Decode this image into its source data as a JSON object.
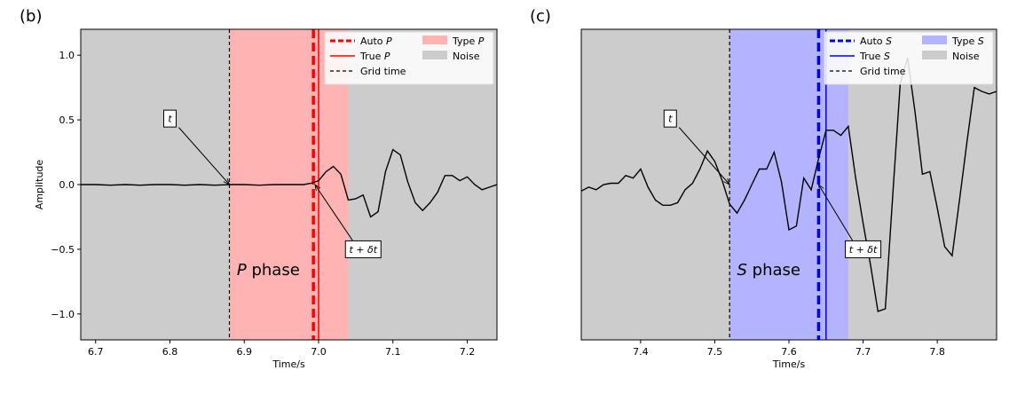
{
  "chart_data": [
    {
      "type": "line",
      "panel_label": "(b)",
      "xlabel": "Time/s",
      "ylabel": "Amplitude",
      "xlim": [
        6.68,
        7.24
      ],
      "ylim": [
        -1.2,
        1.2
      ],
      "x_ticks": [
        6.7,
        6.8,
        6.9,
        7.0,
        7.1,
        7.2
      ],
      "x_tick_labels": [
        "6.7",
        "6.8",
        "6.9",
        "7.0",
        "7.1",
        "7.2"
      ],
      "y_ticks": [
        1.0,
        0.5,
        0.0,
        -0.5,
        -1.0
      ],
      "y_tick_labels": [
        "1.0",
        "0.5",
        "0.0",
        "−0.5",
        "−1.0"
      ],
      "noise_color": "#cccccc",
      "phase_color": "#ffb3b3",
      "line_color": "#ff0000",
      "phase_span": [
        6.88,
        7.04
      ],
      "grid_time": 6.88,
      "auto_pick": 6.993,
      "true_pick": 7.0,
      "phase_text": "phase",
      "phase_symbol": "P",
      "phase_text_pos": [
        6.89,
        -0.7
      ],
      "legend": {
        "auto": "Auto ",
        "true": "True ",
        "grid": "Grid time",
        "type": "Type ",
        "noise": "Noise",
        "symbol": "P"
      },
      "annotations": [
        {
          "text": "t",
          "box": [
            6.8,
            0.51
          ],
          "target": [
            6.88,
            0.0
          ]
        },
        {
          "text": "t + δt",
          "box": [
            7.06,
            -0.5
          ],
          "target": [
            6.995,
            0.0
          ]
        }
      ],
      "series": [
        {
          "x": [
            6.68,
            6.7,
            6.72,
            6.74,
            6.76,
            6.78,
            6.8,
            6.82,
            6.84,
            6.86,
            6.88,
            6.9,
            6.92,
            6.94,
            6.96,
            6.98,
            6.99,
            7.0,
            7.01,
            7.02,
            7.03,
            7.04,
            7.05,
            7.06,
            7.07,
            7.08,
            7.09,
            7.1,
            7.11,
            7.12,
            7.13,
            7.14,
            7.15,
            7.16,
            7.17,
            7.18,
            7.19,
            7.2,
            7.21,
            7.22,
            7.23,
            7.24
          ],
          "y": [
            0.0,
            0.0,
            -0.005,
            0.0,
            -0.005,
            0.0,
            0.0,
            -0.005,
            0.0,
            -0.005,
            0.0,
            0.0,
            -0.005,
            0.0,
            0.0,
            0.0,
            0.01,
            0.03,
            0.1,
            0.14,
            0.08,
            -0.12,
            -0.11,
            -0.08,
            -0.25,
            -0.21,
            0.1,
            0.27,
            0.23,
            0.02,
            -0.14,
            -0.2,
            -0.14,
            -0.06,
            0.07,
            0.07,
            0.03,
            0.06,
            0.0,
            -0.04,
            -0.02,
            0.0
          ]
        }
      ]
    },
    {
      "type": "line",
      "panel_label": "(c)",
      "xlabel": "Time/s",
      "ylabel": "",
      "xlim": [
        7.32,
        7.88
      ],
      "ylim": [
        -1.2,
        1.2
      ],
      "x_ticks": [
        7.4,
        7.5,
        7.6,
        7.7,
        7.8
      ],
      "x_tick_labels": [
        "7.4",
        "7.5",
        "7.6",
        "7.7",
        "7.8"
      ],
      "y_ticks": [],
      "y_tick_labels": [],
      "noise_color": "#cccccc",
      "phase_color": "#b3b3ff",
      "line_color": "#0000ee",
      "phase_span": [
        7.52,
        7.68
      ],
      "grid_time": 7.52,
      "auto_pick": 7.64,
      "true_pick": 7.65,
      "phase_text": "phase",
      "phase_symbol": "S",
      "phase_text_pos": [
        7.53,
        -0.7
      ],
      "legend": {
        "auto": "Auto ",
        "true": "True ",
        "grid": "Grid time",
        "type": "Type ",
        "noise": "Noise",
        "symbol": "S"
      },
      "annotations": [
        {
          "text": "t",
          "box": [
            7.44,
            0.51
          ],
          "target": [
            7.52,
            0.0
          ]
        },
        {
          "text": "t + δt",
          "box": [
            7.7,
            -0.5
          ],
          "target": [
            7.64,
            0.0
          ]
        }
      ],
      "series": [
        {
          "x": [
            7.32,
            7.33,
            7.34,
            7.35,
            7.36,
            7.37,
            7.38,
            7.39,
            7.4,
            7.41,
            7.42,
            7.43,
            7.44,
            7.45,
            7.46,
            7.47,
            7.48,
            7.49,
            7.5,
            7.51,
            7.52,
            7.53,
            7.54,
            7.55,
            7.56,
            7.57,
            7.58,
            7.59,
            7.6,
            7.61,
            7.62,
            7.63,
            7.64,
            7.65,
            7.66,
            7.67,
            7.68,
            7.69,
            7.7,
            7.71,
            7.72,
            7.73,
            7.74,
            7.75,
            7.76,
            7.77,
            7.78,
            7.79,
            7.8,
            7.81,
            7.82,
            7.83,
            7.84,
            7.85,
            7.86,
            7.87,
            7.88
          ],
          "y": [
            -0.05,
            -0.02,
            -0.04,
            0.0,
            0.01,
            0.01,
            0.07,
            0.05,
            0.12,
            -0.02,
            -0.12,
            -0.16,
            -0.16,
            -0.14,
            -0.04,
            0.01,
            0.12,
            0.26,
            0.18,
            0.03,
            -0.15,
            -0.22,
            -0.12,
            0.0,
            0.12,
            0.12,
            0.25,
            0.02,
            -0.35,
            -0.32,
            0.05,
            -0.04,
            0.2,
            0.42,
            0.42,
            0.38,
            0.45,
            0.05,
            -0.3,
            -0.62,
            -0.98,
            -0.96,
            -0.08,
            0.78,
            0.98,
            0.56,
            0.08,
            0.1,
            -0.18,
            -0.48,
            -0.55,
            -0.12,
            0.33,
            0.75,
            0.72,
            0.7,
            0.72
          ]
        }
      ]
    }
  ]
}
